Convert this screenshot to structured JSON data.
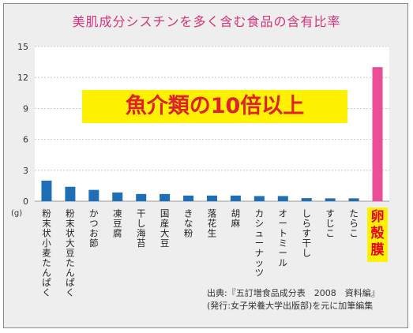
{
  "title": "美肌成分シスチンを多く含む食品の含有比率",
  "callout": "魚介類の10倍以上",
  "source": {
    "line1": "出典:『五訂増食品成分表　2008　資料編』",
    "line2": "(発行:女子栄養大学出版部)を元に加筆編集"
  },
  "chart_data": {
    "type": "bar",
    "title": "美肌成分シスチンを多く含む食品の含有比率",
    "ylabel": "(g)",
    "ylim": [
      0,
      15
    ],
    "yticks": [
      0,
      3,
      6,
      9,
      12,
      15
    ],
    "grid": true,
    "categories": [
      "粉末状小麦たんぱく",
      "粉末状大豆たんぱく",
      "かつお節",
      "凍豆腐",
      "干し海苔",
      "国産大豆",
      "きな粉",
      "落花生",
      "胡麻",
      "カシューナッツ",
      "オートミール",
      "しらす干し",
      "すじこ",
      "たらこ",
      "卵殻膜"
    ],
    "values": [
      2.0,
      1.4,
      1.1,
      0.85,
      0.7,
      0.7,
      0.55,
      0.55,
      0.55,
      0.5,
      0.5,
      0.3,
      0.28,
      0.28,
      13.0
    ],
    "colors": {
      "default": "#1e6fb5",
      "highlight": "#e94e97",
      "highlight_label": "#e8001c",
      "highlight_label_bg": "#fff200",
      "title": "#d6337d",
      "callout_text": "#e0202a",
      "callout_bg": "#fff200"
    },
    "highlight_index": 14
  }
}
